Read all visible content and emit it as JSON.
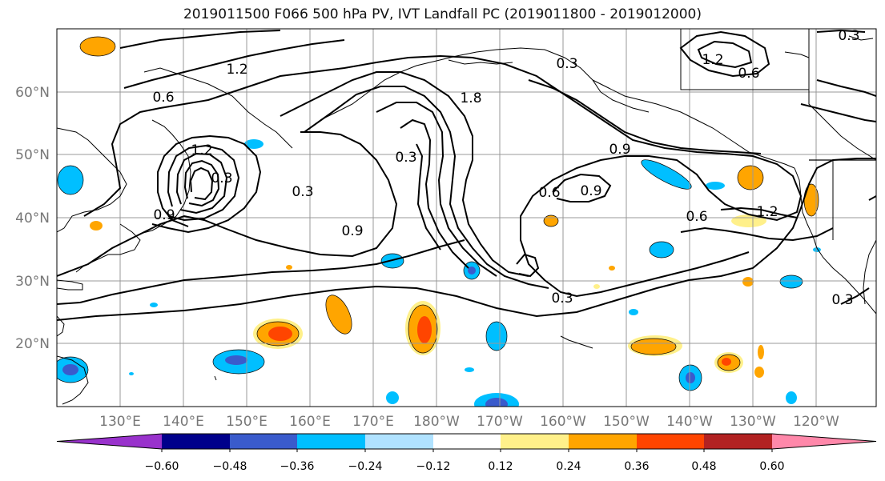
{
  "title": "2019011500 F066 500 hPa PV, IVT Landfall PC (2019011800 - 2019012000)",
  "map": {
    "lon_labels": [
      "130°E",
      "140°E",
      "150°E",
      "160°E",
      "170°E",
      "180°W",
      "170°W",
      "160°W",
      "150°W",
      "140°W",
      "130°W",
      "120°W"
    ],
    "lat_labels": [
      "60°N",
      "50°N",
      "40°N",
      "30°N",
      "20°N"
    ],
    "contour_labels": [
      "1.2",
      "0.6",
      "1.8",
      "0.3",
      "0.3",
      "0.9",
      "0.3",
      "0.9",
      "0.6",
      "0.9",
      "0.6",
      "1.2",
      "0.3",
      "1.2",
      "0.6",
      "0.3",
      "0.3",
      "0.9",
      "0.3",
      "1.2"
    ]
  },
  "colorbar": {
    "ticks": [
      "−0.60",
      "−0.48",
      "−0.36",
      "−0.24",
      "−0.12",
      "0.12",
      "0.24",
      "0.36",
      "0.48",
      "0.60"
    ],
    "colors": [
      "#9932cc",
      "#00008b",
      "#3a5bcc",
      "#00bfff",
      "#b0e2ff",
      "#ffffff",
      "#fff08a",
      "#ffa500",
      "#ff4500",
      "#b22222",
      "#ff88aa"
    ]
  }
}
